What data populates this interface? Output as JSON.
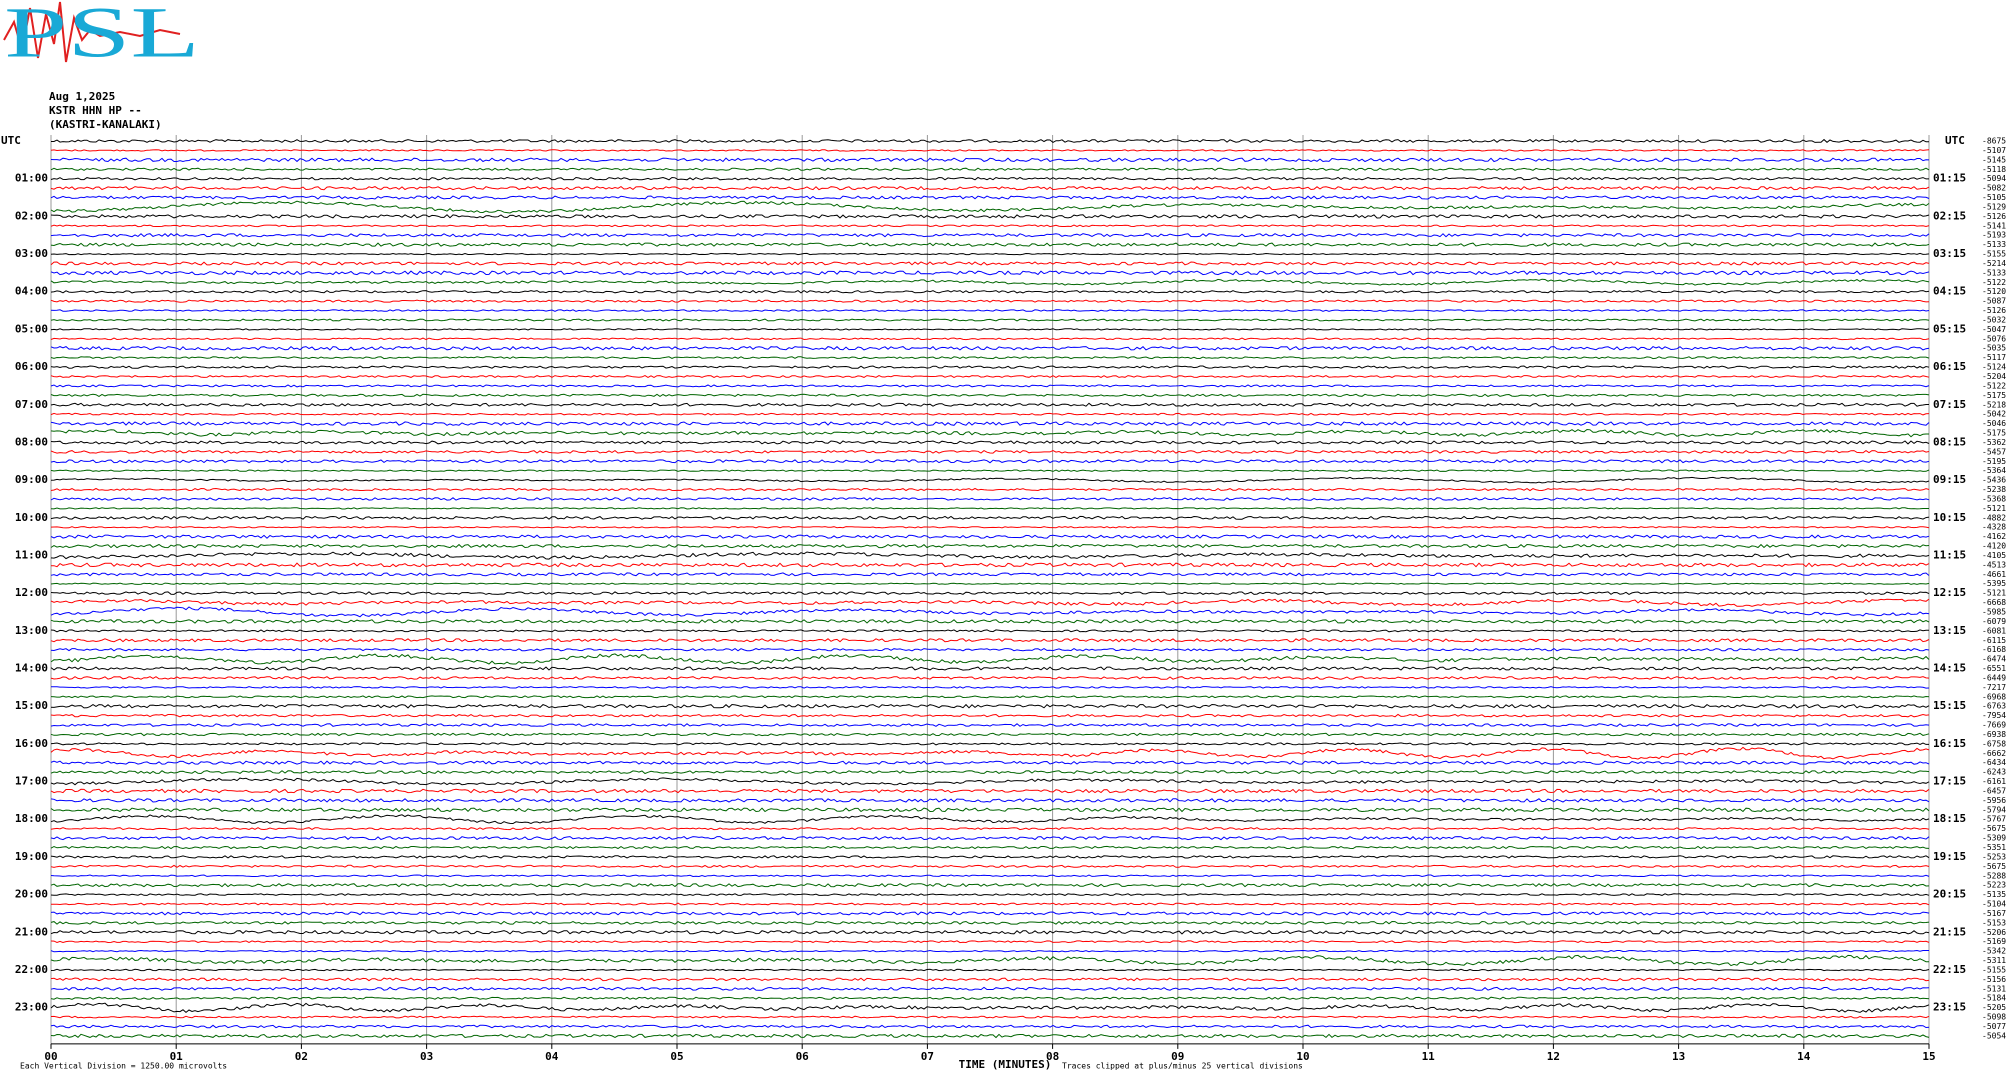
{
  "chart_data": {
    "type": "helicorder",
    "logo": "PSL",
    "date": "Aug 1,2025",
    "station": "KSTR HHN HP --",
    "location": "(KASTRI-KANALAKI)",
    "xlabel": "TIME (MINUTES)",
    "scale_note": "Each Vertical Division = 1250.00 microvolts",
    "clip_note": "Traces clipped at plus/minus 25 vertical divisions",
    "xlim": [
      0,
      15
    ],
    "xticks": [
      {
        "value": 0,
        "label": "00"
      },
      {
        "value": 1,
        "label": "01"
      },
      {
        "value": 2,
        "label": "02"
      },
      {
        "value": 3,
        "label": "03"
      },
      {
        "value": 4,
        "label": "04"
      },
      {
        "value": 5,
        "label": "05"
      },
      {
        "value": 6,
        "label": "06"
      },
      {
        "value": 7,
        "label": "07"
      },
      {
        "value": 8,
        "label": "08"
      },
      {
        "value": 9,
        "label": "09"
      },
      10,
      11,
      12,
      13,
      14,
      15
    ],
    "grid": true,
    "trace_colors": [
      "#000000",
      "#ff0000",
      "#0000ff",
      "#006400"
    ],
    "left_labels": [
      "UTC",
      "01:00",
      "02:00",
      "03:00",
      "04:00",
      "05:00",
      "06:00",
      "07:00",
      "08:00",
      "09:00",
      "10:00",
      "11:00",
      "12:00",
      "13:00",
      "14:00",
      "15:00",
      "16:00",
      "17:00",
      "18:00",
      "19:00",
      "20:00",
      "21:00",
      "22:00",
      "23:00"
    ],
    "right_labels": [
      "UTC",
      "01:15",
      "02:15",
      "03:15",
      "04:15",
      "05:15",
      "06:15",
      "07:15",
      "08:15",
      "09:15",
      "10:15",
      "11:15",
      "12:15",
      "13:15",
      "14:15",
      "15:15",
      "16:15",
      "17:15",
      "18:15",
      "19:15",
      "20:15",
      "21:15",
      "22:15",
      "23:15"
    ],
    "offsets": [
      -8675,
      -5107,
      -5145,
      -5118,
      -5094,
      -5082,
      -5105,
      -5129,
      -5126,
      -5141,
      -5193,
      -5133,
      -5155,
      -5214,
      -5133,
      -5122,
      -5120,
      -5087,
      -5126,
      -5032,
      -5047,
      -5076,
      -5035,
      -5117,
      -5124,
      -5204,
      -5122,
      -5175,
      -5218,
      -5042,
      -5046,
      -5175,
      -5362,
      -5457,
      -5195,
      -5364,
      -5436,
      -5238,
      -5368,
      -5121,
      -4882,
      -4328,
      -4162,
      -4120,
      -4105,
      -4513,
      -4661,
      -5395,
      -5121,
      -6668,
      -5985,
      -6079,
      -6081,
      -6115,
      -6168,
      -6474,
      -6551,
      -6449,
      -7217,
      -6968,
      -6763,
      -7954,
      -7669,
      -6938,
      -6758,
      -6662,
      -6434,
      -6243,
      -6161,
      -6457,
      -5956,
      -5794,
      -5767,
      -5675,
      -5309,
      -5351,
      -5253,
      -5675,
      -5288,
      -5223,
      -5135,
      -5104,
      -5167,
      -5153,
      -5206,
      -5169,
      -5342,
      -5311,
      -5155,
      -5156,
      -5131,
      -5184,
      -5205,
      -5098,
      -5077,
      -5054
    ]
  }
}
